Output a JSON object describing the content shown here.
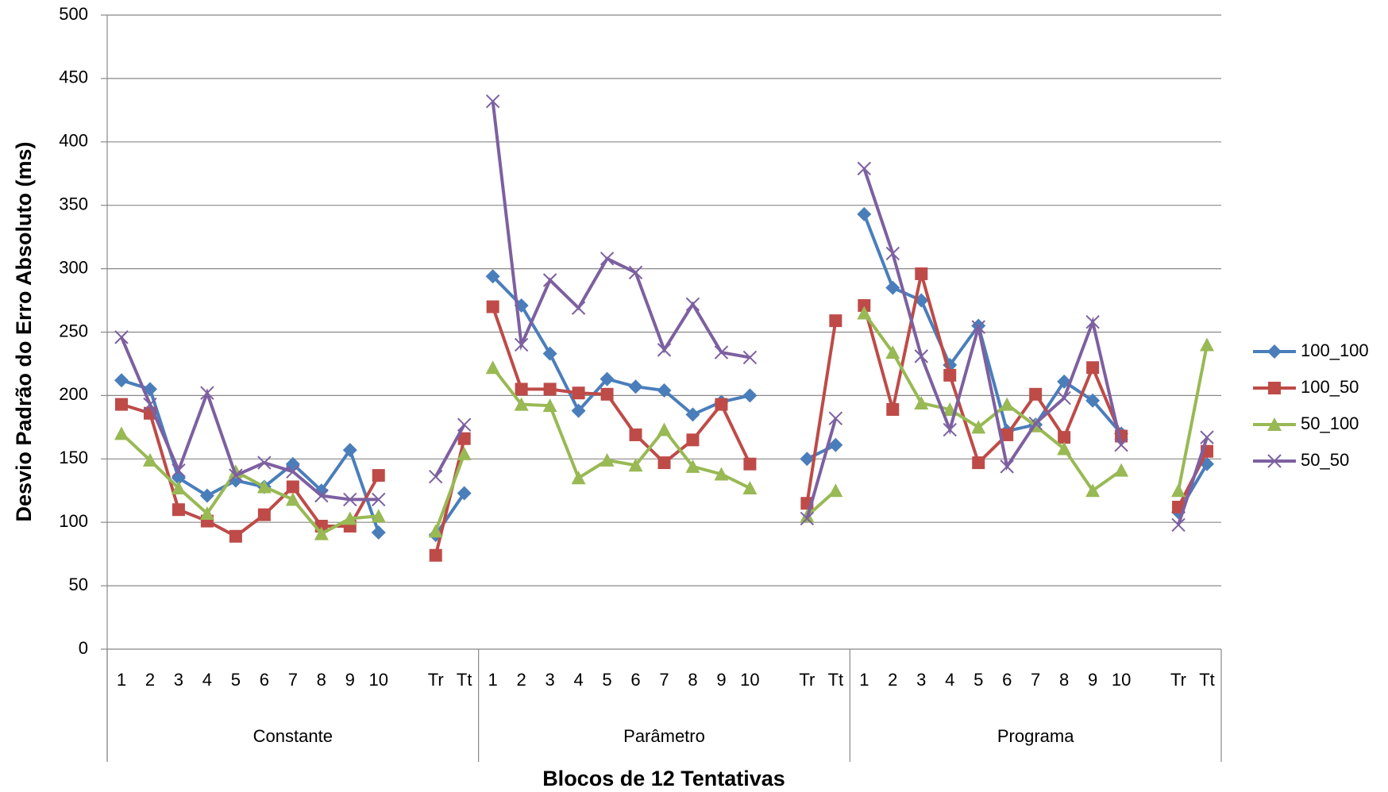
{
  "chart_data": {
    "type": "line",
    "x_label": "Blocos de 12 Tentativas",
    "y_label": "Desvio Padrão do Erro Absoluto (ms)",
    "category_groups": [
      "Constante",
      "Parâmetro",
      "Programa"
    ],
    "categories": [
      "1",
      "2",
      "3",
      "4",
      "5",
      "6",
      "7",
      "8",
      "9",
      "10",
      null,
      "Tr",
      "Tt",
      "1",
      "2",
      "3",
      "4",
      "5",
      "6",
      "7",
      "8",
      "9",
      "10",
      null,
      "Tr",
      "Tt",
      "1",
      "2",
      "3",
      "4",
      "5",
      "6",
      "7",
      "8",
      "9",
      "10",
      null,
      "Tr",
      "Tt"
    ],
    "ylim": [
      0,
      500
    ],
    "yticks": [
      0,
      50,
      100,
      150,
      200,
      250,
      300,
      350,
      400,
      450,
      500
    ],
    "grid": true,
    "legend": "right",
    "series": [
      {
        "name": "100_100",
        "color": "#4a7ebb",
        "marker": "diamond",
        "values": [
          212,
          205,
          135,
          121,
          133,
          128,
          146,
          125,
          157,
          92,
          null,
          90,
          123,
          294,
          271,
          233,
          188,
          213,
          207,
          204,
          185,
          195,
          200,
          null,
          150,
          161,
          343,
          285,
          275,
          224,
          255,
          172,
          177,
          211,
          196,
          170,
          null,
          108,
          146
        ]
      },
      {
        "name": "100_50",
        "color": "#be4b48",
        "marker": "square",
        "values": [
          193,
          186,
          110,
          101,
          89,
          106,
          128,
          97,
          97,
          137,
          null,
          74,
          166,
          270,
          205,
          205,
          202,
          201,
          169,
          147,
          165,
          193,
          146,
          null,
          115,
          259,
          271,
          189,
          296,
          216,
          147,
          169,
          201,
          167,
          222,
          168,
          null,
          112,
          156
        ]
      },
      {
        "name": "50_100",
        "color": "#98b954",
        "marker": "triangle",
        "values": [
          170,
          149,
          127,
          107,
          140,
          128,
          118,
          91,
          103,
          105,
          null,
          93,
          154,
          222,
          193,
          192,
          135,
          149,
          145,
          173,
          144,
          138,
          127,
          null,
          105,
          125,
          265,
          234,
          194,
          189,
          175,
          193,
          176,
          158,
          125,
          141,
          null,
          125,
          240
        ]
      },
      {
        "name": "50_50",
        "color": "#7d60a0",
        "marker": "x",
        "values": [
          246,
          193,
          141,
          202,
          137,
          147,
          140,
          121,
          118,
          118,
          null,
          136,
          177,
          432,
          240,
          291,
          269,
          308,
          297,
          236,
          272,
          234,
          230,
          null,
          103,
          182,
          379,
          312,
          231,
          173,
          254,
          144,
          178,
          198,
          258,
          161,
          null,
          98,
          167
        ]
      }
    ]
  }
}
